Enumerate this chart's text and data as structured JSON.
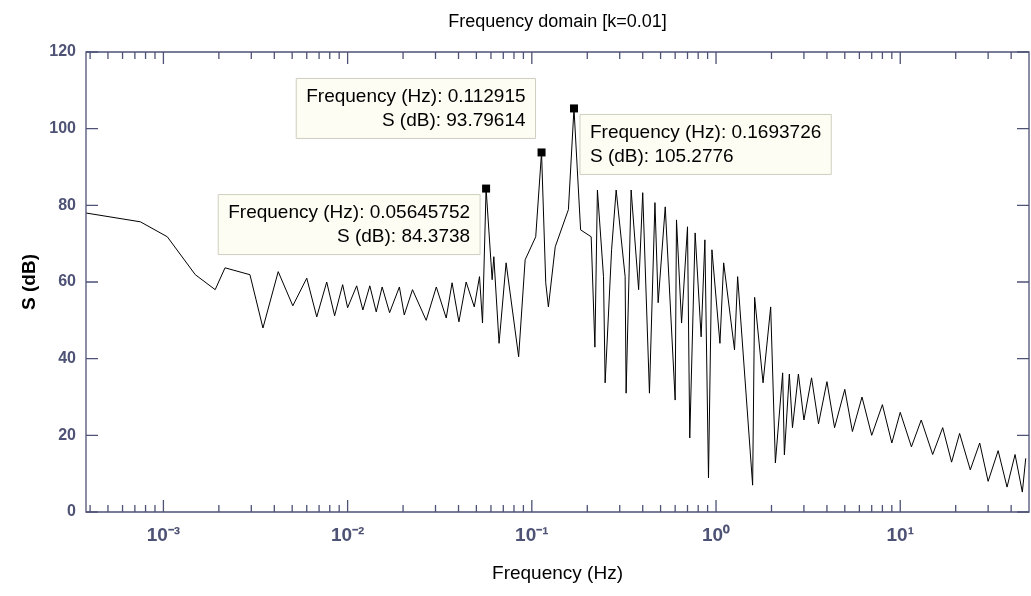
{
  "chart_data": {
    "type": "line",
    "title": "Frequency domain [k=0.01]",
    "xlabel": "Frequency (Hz)",
    "ylabel": "S (dB)",
    "log": "x",
    "grid": false,
    "marker": "none",
    "line_style": "solid",
    "xlim": [
      0.00038,
      50
    ],
    "ylim": [
      0,
      120
    ],
    "yticks": [
      0,
      20,
      40,
      60,
      80,
      100,
      120
    ],
    "xticks": [
      {
        "value": 0.0004,
        "label": null
      },
      {
        "value": 0.0005,
        "label": null
      },
      {
        "value": 0.0006,
        "label": null
      },
      {
        "value": 0.0007,
        "label": null
      },
      {
        "value": 0.0008,
        "label": null
      },
      {
        "value": 0.0009,
        "label": null
      },
      {
        "value": 0.001,
        "label": "10⁻³"
      },
      {
        "value": 0.002,
        "label": null
      },
      {
        "value": 0.003,
        "label": null
      },
      {
        "value": 0.004,
        "label": null
      },
      {
        "value": 0.005,
        "label": null
      },
      {
        "value": 0.006,
        "label": null
      },
      {
        "value": 0.007,
        "label": null
      },
      {
        "value": 0.008,
        "label": null
      },
      {
        "value": 0.009,
        "label": null
      },
      {
        "value": 0.01,
        "label": "10⁻²"
      },
      {
        "value": 0.02,
        "label": null
      },
      {
        "value": 0.03,
        "label": null
      },
      {
        "value": 0.04,
        "label": null
      },
      {
        "value": 0.05,
        "label": null
      },
      {
        "value": 0.06,
        "label": null
      },
      {
        "value": 0.07,
        "label": null
      },
      {
        "value": 0.08,
        "label": null
      },
      {
        "value": 0.09,
        "label": null
      },
      {
        "value": 0.1,
        "label": "10⁻¹"
      },
      {
        "value": 0.2,
        "label": null
      },
      {
        "value": 0.3,
        "label": null
      },
      {
        "value": 0.4,
        "label": null
      },
      {
        "value": 0.5,
        "label": null
      },
      {
        "value": 0.6,
        "label": null
      },
      {
        "value": 0.7,
        "label": null
      },
      {
        "value": 0.8,
        "label": null
      },
      {
        "value": 0.9,
        "label": null
      },
      {
        "value": 1,
        "label": "10⁰"
      },
      {
        "value": 2,
        "label": null
      },
      {
        "value": 3,
        "label": null
      },
      {
        "value": 4,
        "label": null
      },
      {
        "value": 5,
        "label": null
      },
      {
        "value": 6,
        "label": null
      },
      {
        "value": 7,
        "label": null
      },
      {
        "value": 8,
        "label": null
      },
      {
        "value": 9,
        "label": null
      },
      {
        "value": 10,
        "label": "10¹"
      },
      {
        "value": 20,
        "label": null
      },
      {
        "value": 30,
        "label": null
      },
      {
        "value": 40,
        "label": null
      }
    ],
    "series": [
      {
        "color": "#000000",
        "x": [
          0.00038,
          0.00075,
          0.00105,
          0.00149,
          0.00191,
          0.00216,
          0.00295,
          0.00347,
          0.0042,
          0.00504,
          0.006,
          0.0068,
          0.0077,
          0.0085,
          0.0094,
          0.01,
          0.0112,
          0.0121,
          0.0132,
          0.0143,
          0.0154,
          0.0169,
          0.0191,
          0.0203,
          0.0225,
          0.0267,
          0.0303,
          0.0343,
          0.0369,
          0.0402,
          0.044,
          0.0487,
          0.052,
          0.054,
          0.05645752,
          0.0609,
          0.0622,
          0.0664,
          0.0725,
          0.0848,
          0.092,
          0.105,
          0.112915,
          0.119,
          0.123,
          0.134,
          0.158,
          0.1693726,
          0.184,
          0.21,
          0.22,
          0.227,
          0.245,
          0.25,
          0.271,
          0.287,
          0.321,
          0.325,
          0.346,
          0.38,
          0.4,
          0.435,
          0.466,
          0.485,
          0.53,
          0.6,
          0.61,
          0.65,
          0.7,
          0.72,
          0.77,
          0.83,
          0.87,
          0.91,
          0.95,
          1.05,
          1.1,
          1.26,
          1.31,
          1.58,
          1.62,
          1.8,
          1.98,
          2.1,
          2.3,
          2.35,
          2.5,
          2.6,
          2.8,
          3,
          3.3,
          3.6,
          4,
          4.4,
          5,
          5.5,
          6.2,
          7,
          8,
          9,
          10,
          11.5,
          13,
          15,
          17,
          19,
          21,
          24,
          27,
          30,
          34,
          38,
          42,
          46,
          48
        ],
        "values": [
          78,
          75.7,
          71.8,
          61.9,
          58,
          63.7,
          61.9,
          48,
          62.7,
          53.8,
          61,
          50.9,
          60,
          51.2,
          59.3,
          53.3,
          59,
          52.7,
          59,
          52.2,
          58.7,
          52,
          58.7,
          51.4,
          58,
          50,
          58.7,
          50.6,
          59.8,
          49.6,
          60,
          53.5,
          61.4,
          49.3,
          84.3738,
          60.6,
          66.6,
          44,
          65,
          40.5,
          65.8,
          71.8,
          93.79614,
          59.8,
          53.5,
          69.2,
          78.9,
          105.2776,
          73.6,
          71.8,
          43,
          84,
          61.4,
          33.7,
          68.4,
          84,
          61.4,
          31,
          84,
          58,
          83.3,
          31,
          80.7,
          54.6,
          79.6,
          29.2,
          76.2,
          49.3,
          74.4,
          19.3,
          72.8,
          45.7,
          71,
          8.9,
          68.4,
          44,
          65,
          42.3,
          61.4,
          7,
          56,
          33.7,
          53.5,
          12.8,
          36.3,
          14.9,
          36,
          22,
          36,
          24,
          35,
          23,
          34,
          22,
          32,
          21,
          30,
          20,
          28,
          18,
          26,
          17,
          24,
          15,
          22,
          13,
          20.5,
          11,
          18,
          8,
          16,
          6.5,
          15,
          5.2,
          14
        ]
      }
    ],
    "annotations": [
      {
        "text": "Frequency (Hz): 0.05645752\nS (dB): 84.3738",
        "x": 0.05645752,
        "y": 84.3738
      },
      {
        "text": "Frequency (Hz): 0.112915\nS (dB): 93.79614",
        "x": 0.112915,
        "y": 93.79614
      },
      {
        "text": "Frequency (Hz): 0.1693726\nS (dB): 105.2776",
        "x": 0.1693726,
        "y": 105.2776
      }
    ]
  }
}
